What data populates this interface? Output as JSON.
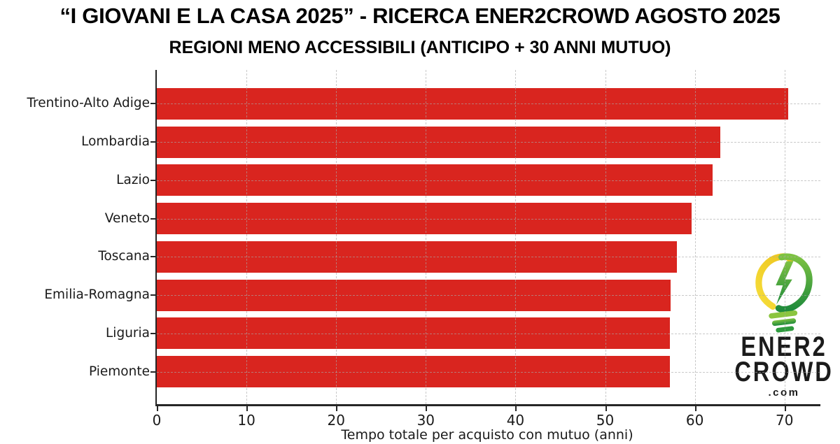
{
  "chart_data": {
    "type": "bar",
    "orientation": "horizontal",
    "title": "“I GIOVANI E LA CASA 2025” - RICERCA ENER2CROWD AGOSTO 2025",
    "subtitle": "REGIONI MENO ACCESSIBILI (ANTICIPO + 30 ANNI MUTUO)",
    "categories": [
      "Trentino-Alto Adige",
      "Lombardia",
      "Lazio",
      "Veneto",
      "Toscana",
      "Emilia-Romagna",
      "Liguria",
      "Piemonte"
    ],
    "values": [
      70.4,
      62.8,
      62.0,
      59.6,
      58.0,
      57.3,
      57.2,
      57.2
    ],
    "xlabel": "Tempo totale per acquisto con mutuo (anni)",
    "xlim": [
      0,
      74
    ],
    "xticks": [
      0,
      10,
      20,
      30,
      40,
      50,
      60,
      70
    ],
    "grid": "dashed gridlines drawn over bars, both axes",
    "legend": "none",
    "bar_color": "#d9251f",
    "axis_color": "#262626"
  },
  "logo": {
    "line1": "ENER2",
    "line2": "CROWD",
    "line3": ".com",
    "icon": "lightbulb-energy-leaf-icon",
    "colors": {
      "yellow": "#f2ce24",
      "green_light": "#7dc242",
      "green_dark": "#1f8b3b",
      "text": "#1b1b1b"
    }
  }
}
